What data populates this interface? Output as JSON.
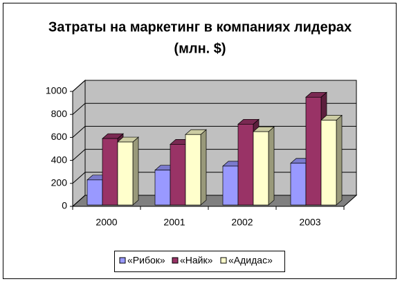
{
  "chart_data": {
    "type": "bar3d",
    "title": [
      "Затраты на маркетинг в компаниях лидерах",
      "(млн. $)"
    ],
    "categories": [
      "2000",
      "2001",
      "2002",
      "2003"
    ],
    "series": [
      {
        "name": "«Рибок»",
        "color": "#9999ff",
        "values": [
          230,
          315,
          350,
          375
        ]
      },
      {
        "name": "«Найк»",
        "color": "#993366",
        "values": [
          590,
          540,
          715,
          950
        ]
      },
      {
        "name": "«Адидас»",
        "color": "#ffffcc",
        "values": [
          560,
          625,
          650,
          750
        ]
      }
    ],
    "ylim": [
      0,
      1000
    ],
    "yticks": [
      0,
      200,
      400,
      600,
      800,
      1000
    ],
    "grid": true,
    "legend": "bottom"
  }
}
